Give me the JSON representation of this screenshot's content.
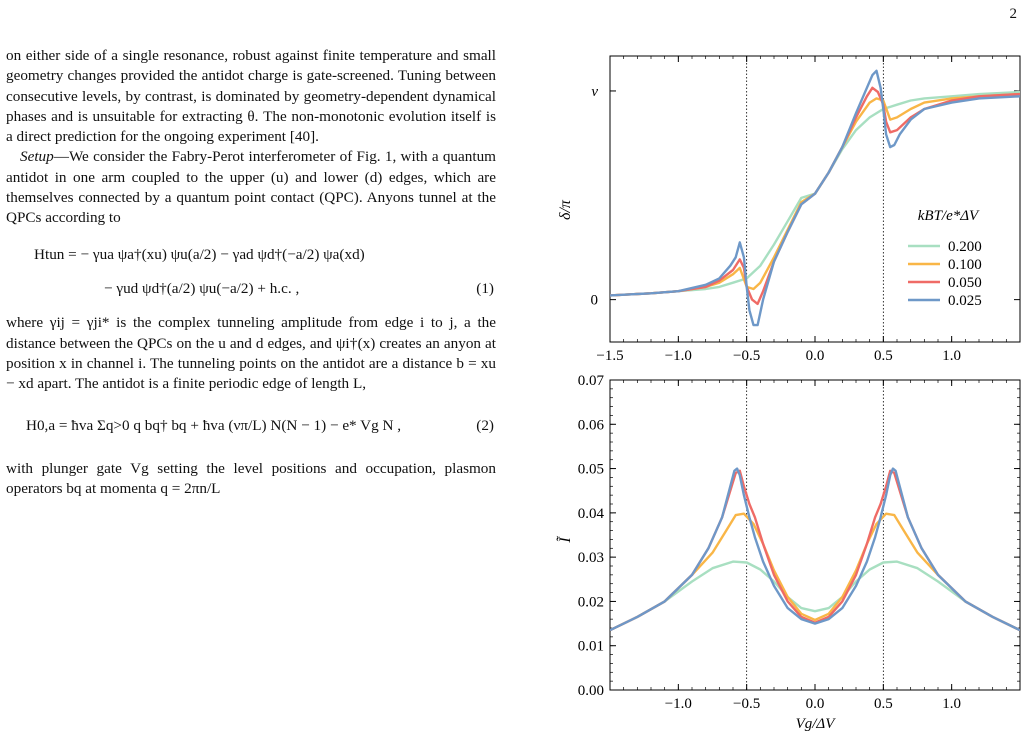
{
  "page_number": "2",
  "paragraphs": {
    "p1": "on either side of a single resonance, robust against finite temperature and small geometry changes provided the antidot charge is gate-screened. Tuning between consecutive levels, by contrast, is dominated by geometry-dependent dynamical phases and is unsuitable for extracting θ. The non-monotonic evolution itself is a direct prediction for the ongoing experiment [40].",
    "setup_label": "Setup",
    "p2": "—We consider the Fabry-Perot interferometer of Fig. 1, with a quantum antidot in one arm coupled to the upper (u) and lower (d) edges, which are themselves connected by a quantum point contact (QPC). Anyons tunnel at the QPCs according to",
    "p3": "where γij = γji* is the complex tunneling amplitude from edge i to j, a the distance between the QPCs on the u and d edges, and ψi†(x) creates an anyon at position x in channel i. The tunneling points on the antidot are a distance b = xu − xd apart. The antidot is a finite periodic edge of length L,",
    "p4": "with plunger gate Vg setting the level positions and occupation, plasmon operators bq at momenta q = 2πn/L"
  },
  "equations": {
    "eq1_line1": "Htun = − γua ψa†(xu) ψu(a/2) − γad ψd†(−a/2) ψa(xd)",
    "eq1_line2": "− γud ψd†(a/2) ψu(−a/2) + h.c. ,",
    "eq1_num": "(1)",
    "eq2": "H0,a = ħva Σq>0 q bq† bq + ħva (νπ/L) N(N − 1) − e* Vg N ,",
    "eq2_num": "(2)"
  },
  "colors": {
    "t0200": "#a8dfc1",
    "t0100": "#f9b647",
    "t0050": "#ef6b66",
    "t0025": "#6e98c8"
  },
  "chart_data": [
    {
      "type": "line",
      "panel": "top",
      "ylabel": "δ/π",
      "yticks": [
        "0",
        "ν"
      ],
      "xticks": [
        "−1.5",
        "−1.0",
        "−0.5",
        "0.0",
        "0.5",
        "1.0"
      ],
      "xlim": [
        -1.5,
        1.5
      ],
      "ylim": [
        -0.2,
        1.15
      ],
      "vlines": [
        -0.5,
        0.5
      ],
      "legend_title": "kBT/e*ΔV",
      "legend_position": "center-right",
      "series": [
        {
          "name": "0.200",
          "x": [
            -1.5,
            -1.2,
            -1.0,
            -0.8,
            -0.7,
            -0.6,
            -0.5,
            -0.4,
            -0.3,
            -0.2,
            -0.1,
            0.0,
            0.1,
            0.2,
            0.3,
            0.4,
            0.5,
            0.6,
            0.7,
            0.8,
            1.0,
            1.2,
            1.5
          ],
          "y": [
            0.02,
            0.03,
            0.04,
            0.05,
            0.06,
            0.08,
            0.1,
            0.16,
            0.26,
            0.37,
            0.48,
            0.5,
            0.6,
            0.71,
            0.8,
            0.86,
            0.9,
            0.92,
            0.94,
            0.95,
            0.96,
            0.97,
            0.98
          ]
        },
        {
          "name": "0.100",
          "x": [
            -1.5,
            -1.2,
            -1.0,
            -0.8,
            -0.7,
            -0.6,
            -0.55,
            -0.5,
            -0.45,
            -0.4,
            -0.3,
            -0.2,
            -0.1,
            0.0,
            0.1,
            0.2,
            0.3,
            0.4,
            0.45,
            0.5,
            0.55,
            0.6,
            0.7,
            0.8,
            1.0,
            1.2,
            1.5
          ],
          "y": [
            0.02,
            0.03,
            0.04,
            0.06,
            0.08,
            0.12,
            0.15,
            0.06,
            0.05,
            0.08,
            0.2,
            0.33,
            0.46,
            0.5,
            0.6,
            0.72,
            0.84,
            0.93,
            0.95,
            0.94,
            0.85,
            0.86,
            0.9,
            0.93,
            0.95,
            0.96,
            0.97
          ]
        },
        {
          "name": "0.050",
          "x": [
            -1.5,
            -1.2,
            -1.0,
            -0.8,
            -0.7,
            -0.6,
            -0.55,
            -0.52,
            -0.5,
            -0.46,
            -0.42,
            -0.38,
            -0.3,
            -0.2,
            -0.1,
            0.0,
            0.1,
            0.2,
            0.3,
            0.38,
            0.42,
            0.46,
            0.5,
            0.52,
            0.55,
            0.6,
            0.7,
            0.8,
            1.0,
            1.2,
            1.5
          ],
          "y": [
            0.02,
            0.03,
            0.04,
            0.06,
            0.09,
            0.14,
            0.19,
            0.15,
            0.06,
            0.0,
            -0.02,
            0.04,
            0.18,
            0.32,
            0.45,
            0.5,
            0.6,
            0.72,
            0.86,
            0.96,
            1.0,
            0.98,
            0.92,
            0.84,
            0.79,
            0.8,
            0.86,
            0.9,
            0.94,
            0.96,
            0.97
          ]
        },
        {
          "name": "0.025",
          "x": [
            -1.5,
            -1.2,
            -1.0,
            -0.8,
            -0.7,
            -0.62,
            -0.58,
            -0.55,
            -0.52,
            -0.5,
            -0.48,
            -0.45,
            -0.42,
            -0.38,
            -0.3,
            -0.2,
            -0.1,
            0.0,
            0.1,
            0.2,
            0.3,
            0.38,
            0.42,
            0.45,
            0.48,
            0.5,
            0.52,
            0.55,
            0.58,
            0.62,
            0.7,
            0.8,
            1.0,
            1.2,
            1.5
          ],
          "y": [
            0.02,
            0.03,
            0.04,
            0.07,
            0.1,
            0.16,
            0.2,
            0.27,
            0.2,
            0.06,
            -0.05,
            -0.12,
            -0.12,
            0.0,
            0.18,
            0.32,
            0.45,
            0.5,
            0.6,
            0.72,
            0.88,
            1.0,
            1.06,
            1.08,
            1.0,
            0.9,
            0.78,
            0.72,
            0.73,
            0.78,
            0.85,
            0.9,
            0.93,
            0.95,
            0.96
          ]
        }
      ]
    },
    {
      "type": "line",
      "panel": "bottom",
      "ylabel": "Ĩ",
      "xlabel": "Vg/ΔV",
      "yticks": [
        "0.00",
        "0.01",
        "0.02",
        "0.03",
        "0.04",
        "0.05",
        "0.06",
        "0.07"
      ],
      "xticks": [
        "−1.0",
        "−0.5",
        "0.0",
        "0.5",
        "1.0"
      ],
      "xlim": [
        -1.5,
        1.5
      ],
      "ylim": [
        0.0,
        0.07
      ],
      "vlines": [
        -0.5,
        0.5
      ],
      "series": [
        {
          "name": "0.200",
          "x": [
            -1.5,
            -1.3,
            -1.1,
            -0.9,
            -0.75,
            -0.6,
            -0.5,
            -0.4,
            -0.3,
            -0.2,
            -0.1,
            0.0,
            0.1,
            0.2,
            0.3,
            0.4,
            0.5,
            0.6,
            0.75,
            0.9,
            1.1,
            1.3,
            1.5
          ],
          "y": [
            0.0135,
            0.0165,
            0.02,
            0.0245,
            0.0275,
            0.029,
            0.0288,
            0.0272,
            0.0245,
            0.021,
            0.0185,
            0.0178,
            0.0185,
            0.021,
            0.0245,
            0.0272,
            0.0288,
            0.029,
            0.0275,
            0.0245,
            0.02,
            0.0165,
            0.0135
          ]
        },
        {
          "name": "0.100",
          "x": [
            -1.5,
            -1.3,
            -1.1,
            -0.9,
            -0.75,
            -0.65,
            -0.58,
            -0.52,
            -0.45,
            -0.38,
            -0.3,
            -0.2,
            -0.1,
            0.0,
            0.1,
            0.2,
            0.3,
            0.38,
            0.45,
            0.52,
            0.58,
            0.65,
            0.75,
            0.9,
            1.1,
            1.3,
            1.5
          ],
          "y": [
            0.0135,
            0.0165,
            0.02,
            0.026,
            0.031,
            0.036,
            0.0395,
            0.0398,
            0.0375,
            0.033,
            0.027,
            0.021,
            0.0172,
            0.0158,
            0.0172,
            0.021,
            0.027,
            0.033,
            0.0375,
            0.0398,
            0.0395,
            0.036,
            0.031,
            0.026,
            0.02,
            0.0165,
            0.0135
          ]
        },
        {
          "name": "0.050",
          "x": [
            -1.5,
            -1.3,
            -1.1,
            -0.9,
            -0.78,
            -0.68,
            -0.62,
            -0.58,
            -0.55,
            -0.52,
            -0.48,
            -0.44,
            -0.38,
            -0.3,
            -0.2,
            -0.1,
            0.0,
            0.1,
            0.2,
            0.3,
            0.38,
            0.44,
            0.48,
            0.52,
            0.55,
            0.58,
            0.62,
            0.68,
            0.78,
            0.9,
            1.1,
            1.3,
            1.5
          ],
          "y": [
            0.0135,
            0.0165,
            0.02,
            0.026,
            0.032,
            0.039,
            0.045,
            0.049,
            0.0495,
            0.046,
            0.042,
            0.039,
            0.033,
            0.026,
            0.02,
            0.0165,
            0.0152,
            0.0165,
            0.02,
            0.026,
            0.033,
            0.039,
            0.042,
            0.046,
            0.0495,
            0.049,
            0.045,
            0.039,
            0.032,
            0.026,
            0.02,
            0.0165,
            0.0135
          ]
        },
        {
          "name": "0.025",
          "x": [
            -1.5,
            -1.3,
            -1.1,
            -0.9,
            -0.78,
            -0.68,
            -0.62,
            -0.59,
            -0.57,
            -0.55,
            -0.52,
            -0.48,
            -0.44,
            -0.38,
            -0.3,
            -0.2,
            -0.1,
            0.0,
            0.1,
            0.2,
            0.3,
            0.38,
            0.44,
            0.48,
            0.52,
            0.55,
            0.57,
            0.59,
            0.62,
            0.68,
            0.78,
            0.9,
            1.1,
            1.3,
            1.5
          ],
          "y": [
            0.0135,
            0.0165,
            0.02,
            0.026,
            0.032,
            0.039,
            0.046,
            0.0495,
            0.05,
            0.0485,
            0.044,
            0.039,
            0.0345,
            0.029,
            0.0235,
            0.0185,
            0.016,
            0.015,
            0.016,
            0.0185,
            0.0235,
            0.029,
            0.0345,
            0.039,
            0.044,
            0.0485,
            0.05,
            0.0495,
            0.046,
            0.039,
            0.032,
            0.026,
            0.02,
            0.0165,
            0.0135
          ]
        }
      ]
    }
  ]
}
